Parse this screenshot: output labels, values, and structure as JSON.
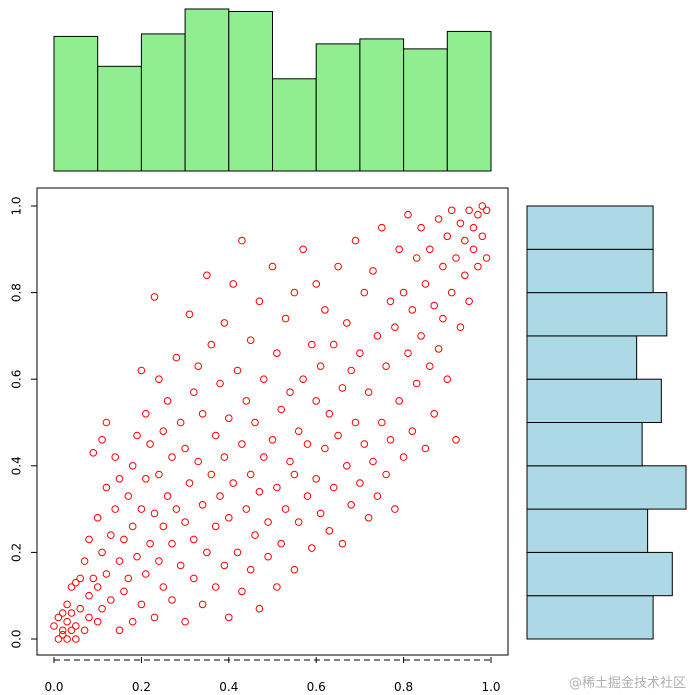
{
  "chart_data": [
    {
      "type": "scatter",
      "title": "",
      "xlabel": "",
      "ylabel": "",
      "xlim": [
        0,
        1
      ],
      "ylim": [
        0,
        1
      ],
      "x_ticks": [
        0.0,
        0.2,
        0.4,
        0.6,
        0.8,
        1.0
      ],
      "y_ticks": [
        0.0,
        0.2,
        0.4,
        0.6,
        0.8,
        1.0
      ],
      "x_tick_labels": [
        "0.0",
        "0.2",
        "0.4",
        "0.6",
        "0.8",
        "1.0"
      ],
      "y_tick_labels": [
        "0.0",
        "0.2",
        "0.4",
        "0.6",
        "0.8",
        "1.0"
      ],
      "point_color": "#ff0000",
      "marker": "open-circle",
      "grid": false,
      "points": [
        [
          0.0,
          0.03
        ],
        [
          0.01,
          0.05
        ],
        [
          0.01,
          0.0
        ],
        [
          0.02,
          0.02
        ],
        [
          0.02,
          0.06
        ],
        [
          0.02,
          0.01
        ],
        [
          0.03,
          0.04
        ],
        [
          0.03,
          0.0
        ],
        [
          0.03,
          0.08
        ],
        [
          0.04,
          0.02
        ],
        [
          0.04,
          0.12
        ],
        [
          0.04,
          0.06
        ],
        [
          0.05,
          0.03
        ],
        [
          0.05,
          0.13
        ],
        [
          0.05,
          0.0
        ],
        [
          0.06,
          0.07
        ],
        [
          0.06,
          0.14
        ],
        [
          0.07,
          0.02
        ],
        [
          0.07,
          0.18
        ],
        [
          0.08,
          0.05
        ],
        [
          0.08,
          0.1
        ],
        [
          0.08,
          0.23
        ],
        [
          0.09,
          0.14
        ],
        [
          0.09,
          0.43
        ],
        [
          0.1,
          0.04
        ],
        [
          0.1,
          0.12
        ],
        [
          0.1,
          0.28
        ],
        [
          0.11,
          0.07
        ],
        [
          0.11,
          0.2
        ],
        [
          0.11,
          0.46
        ],
        [
          0.12,
          0.15
        ],
        [
          0.12,
          0.35
        ],
        [
          0.12,
          0.5
        ],
        [
          0.13,
          0.09
        ],
        [
          0.13,
          0.24
        ],
        [
          0.14,
          0.3
        ],
        [
          0.14,
          0.42
        ],
        [
          0.15,
          0.02
        ],
        [
          0.15,
          0.18
        ],
        [
          0.15,
          0.37
        ],
        [
          0.16,
          0.11
        ],
        [
          0.16,
          0.23
        ],
        [
          0.17,
          0.14
        ],
        [
          0.17,
          0.33
        ],
        [
          0.18,
          0.04
        ],
        [
          0.18,
          0.26
        ],
        [
          0.18,
          0.4
        ],
        [
          0.19,
          0.19
        ],
        [
          0.19,
          0.47
        ],
        [
          0.2,
          0.08
        ],
        [
          0.2,
          0.3
        ],
        [
          0.2,
          0.62
        ],
        [
          0.21,
          0.15
        ],
        [
          0.21,
          0.37
        ],
        [
          0.21,
          0.52
        ],
        [
          0.22,
          0.22
        ],
        [
          0.22,
          0.45
        ],
        [
          0.23,
          0.05
        ],
        [
          0.23,
          0.29
        ],
        [
          0.23,
          0.79
        ],
        [
          0.24,
          0.18
        ],
        [
          0.24,
          0.38
        ],
        [
          0.24,
          0.6
        ],
        [
          0.25,
          0.12
        ],
        [
          0.25,
          0.26
        ],
        [
          0.25,
          0.48
        ],
        [
          0.26,
          0.33
        ],
        [
          0.26,
          0.55
        ],
        [
          0.27,
          0.09
        ],
        [
          0.27,
          0.22
        ],
        [
          0.27,
          0.42
        ],
        [
          0.28,
          0.3
        ],
        [
          0.28,
          0.65
        ],
        [
          0.29,
          0.17
        ],
        [
          0.29,
          0.5
        ],
        [
          0.3,
          0.04
        ],
        [
          0.3,
          0.27
        ],
        [
          0.3,
          0.44
        ],
        [
          0.31,
          0.36
        ],
        [
          0.31,
          0.75
        ],
        [
          0.32,
          0.14
        ],
        [
          0.32,
          0.23
        ],
        [
          0.32,
          0.57
        ],
        [
          0.33,
          0.41
        ],
        [
          0.33,
          0.63
        ],
        [
          0.34,
          0.08
        ],
        [
          0.34,
          0.31
        ],
        [
          0.34,
          0.52
        ],
        [
          0.35,
          0.2
        ],
        [
          0.35,
          0.84
        ],
        [
          0.36,
          0.38
        ],
        [
          0.36,
          0.68
        ],
        [
          0.37,
          0.12
        ],
        [
          0.37,
          0.26
        ],
        [
          0.37,
          0.47
        ],
        [
          0.38,
          0.33
        ],
        [
          0.38,
          0.59
        ],
        [
          0.39,
          0.17
        ],
        [
          0.39,
          0.42
        ],
        [
          0.39,
          0.73
        ],
        [
          0.4,
          0.05
        ],
        [
          0.4,
          0.28
        ],
        [
          0.4,
          0.51
        ],
        [
          0.41,
          0.36
        ],
        [
          0.41,
          0.82
        ],
        [
          0.42,
          0.2
        ],
        [
          0.42,
          0.62
        ],
        [
          0.43,
          0.11
        ],
        [
          0.43,
          0.45
        ],
        [
          0.43,
          0.92
        ],
        [
          0.44,
          0.3
        ],
        [
          0.44,
          0.55
        ],
        [
          0.45,
          0.16
        ],
        [
          0.45,
          0.38
        ],
        [
          0.45,
          0.69
        ],
        [
          0.46,
          0.24
        ],
        [
          0.46,
          0.5
        ],
        [
          0.47,
          0.07
        ],
        [
          0.47,
          0.34
        ],
        [
          0.47,
          0.78
        ],
        [
          0.48,
          0.42
        ],
        [
          0.48,
          0.6
        ],
        [
          0.49,
          0.19
        ],
        [
          0.49,
          0.27
        ],
        [
          0.5,
          0.46
        ],
        [
          0.5,
          0.86
        ],
        [
          0.51,
          0.12
        ],
        [
          0.51,
          0.35
        ],
        [
          0.51,
          0.66
        ],
        [
          0.52,
          0.22
        ],
        [
          0.52,
          0.53
        ],
        [
          0.53,
          0.3
        ],
        [
          0.53,
          0.74
        ],
        [
          0.54,
          0.41
        ],
        [
          0.54,
          0.57
        ],
        [
          0.55,
          0.16
        ],
        [
          0.55,
          0.38
        ],
        [
          0.55,
          0.8
        ],
        [
          0.56,
          0.27
        ],
        [
          0.56,
          0.48
        ],
        [
          0.57,
          0.6
        ],
        [
          0.57,
          0.9
        ],
        [
          0.58,
          0.33
        ],
        [
          0.58,
          0.45
        ],
        [
          0.59,
          0.21
        ],
        [
          0.59,
          0.68
        ],
        [
          0.6,
          0.37
        ],
        [
          0.6,
          0.55
        ],
        [
          0.6,
          0.82
        ],
        [
          0.61,
          0.29
        ],
        [
          0.61,
          0.63
        ],
        [
          0.62,
          0.44
        ],
        [
          0.62,
          0.76
        ],
        [
          0.63,
          0.25
        ],
        [
          0.63,
          0.52
        ],
        [
          0.64,
          0.35
        ],
        [
          0.64,
          0.68
        ],
        [
          0.65,
          0.47
        ],
        [
          0.65,
          0.86
        ],
        [
          0.66,
          0.22
        ],
        [
          0.66,
          0.58
        ],
        [
          0.67,
          0.4
        ],
        [
          0.67,
          0.73
        ],
        [
          0.68,
          0.31
        ],
        [
          0.68,
          0.62
        ],
        [
          0.69,
          0.5
        ],
        [
          0.69,
          0.92
        ],
        [
          0.7,
          0.36
        ],
        [
          0.7,
          0.66
        ],
        [
          0.71,
          0.45
        ],
        [
          0.71,
          0.8
        ],
        [
          0.72,
          0.28
        ],
        [
          0.72,
          0.57
        ],
        [
          0.73,
          0.41
        ],
        [
          0.73,
          0.85
        ],
        [
          0.74,
          0.33
        ],
        [
          0.74,
          0.7
        ],
        [
          0.75,
          0.5
        ],
        [
          0.75,
          0.95
        ],
        [
          0.76,
          0.38
        ],
        [
          0.76,
          0.63
        ],
        [
          0.77,
          0.46
        ],
        [
          0.77,
          0.78
        ],
        [
          0.78,
          0.3
        ],
        [
          0.78,
          0.72
        ],
        [
          0.79,
          0.55
        ],
        [
          0.79,
          0.9
        ],
        [
          0.8,
          0.42
        ],
        [
          0.8,
          0.8
        ],
        [
          0.81,
          0.66
        ],
        [
          0.81,
          0.98
        ],
        [
          0.82,
          0.48
        ],
        [
          0.82,
          0.76
        ],
        [
          0.83,
          0.59
        ],
        [
          0.83,
          0.88
        ],
        [
          0.84,
          0.7
        ],
        [
          0.84,
          0.95
        ],
        [
          0.85,
          0.44
        ],
        [
          0.85,
          0.82
        ],
        [
          0.86,
          0.63
        ],
        [
          0.86,
          0.9
        ],
        [
          0.87,
          0.52
        ],
        [
          0.87,
          0.77
        ],
        [
          0.88,
          0.67
        ],
        [
          0.88,
          0.97
        ],
        [
          0.89,
          0.74
        ],
        [
          0.89,
          0.86
        ],
        [
          0.9,
          0.6
        ],
        [
          0.9,
          0.93
        ],
        [
          0.91,
          0.8
        ],
        [
          0.91,
          0.99
        ],
        [
          0.92,
          0.46
        ],
        [
          0.92,
          0.88
        ],
        [
          0.93,
          0.72
        ],
        [
          0.93,
          0.96
        ],
        [
          0.94,
          0.84
        ],
        [
          0.94,
          0.92
        ],
        [
          0.95,
          0.78
        ],
        [
          0.95,
          0.99
        ],
        [
          0.96,
          0.9
        ],
        [
          0.96,
          0.95
        ],
        [
          0.97,
          0.86
        ],
        [
          0.97,
          0.98
        ],
        [
          0.98,
          0.93
        ],
        [
          0.98,
          1.0
        ],
        [
          0.99,
          0.88
        ],
        [
          0.99,
          0.99
        ]
      ]
    },
    {
      "type": "bar",
      "orientation": "vertical",
      "fill": "#90ee90",
      "bins": [
        [
          0.0,
          0.1
        ],
        [
          0.1,
          0.2
        ],
        [
          0.2,
          0.3
        ],
        [
          0.3,
          0.4
        ],
        [
          0.4,
          0.5
        ],
        [
          0.5,
          0.6
        ],
        [
          0.6,
          0.7
        ],
        [
          0.7,
          0.8
        ],
        [
          0.8,
          0.9
        ],
        [
          0.9,
          1.0
        ]
      ],
      "values": [
        54,
        42,
        55,
        65,
        64,
        37,
        51,
        53,
        49,
        56
      ]
    },
    {
      "type": "bar",
      "orientation": "horizontal",
      "fill": "#add8e6",
      "bins": [
        [
          0.0,
          0.1
        ],
        [
          0.1,
          0.2
        ],
        [
          0.2,
          0.3
        ],
        [
          0.3,
          0.4
        ],
        [
          0.4,
          0.5
        ],
        [
          0.5,
          0.6
        ],
        [
          0.6,
          0.7
        ],
        [
          0.7,
          0.8
        ],
        [
          0.8,
          0.9
        ],
        [
          0.9,
          1.0
        ]
      ],
      "values": [
        46,
        53,
        44,
        58,
        42,
        49,
        40,
        51,
        46,
        46
      ]
    }
  ],
  "watermark": "@稀土掘金技术社区"
}
